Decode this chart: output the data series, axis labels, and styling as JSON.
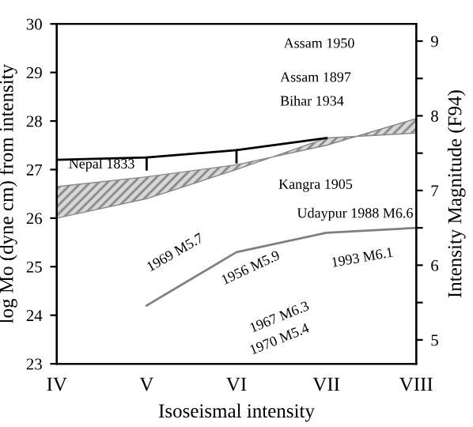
{
  "chart_data": {
    "type": "line",
    "xlabel": "Isoseismal intensity",
    "ylabel": "log Mo (dyne cm) from intensity",
    "y2label": "Intensity Magnitude (F94)",
    "categories": [
      "IV",
      "V",
      "VI",
      "VII",
      "VIII"
    ],
    "ylim": [
      23,
      30
    ],
    "yticks": [
      23,
      24,
      25,
      26,
      27,
      28,
      29,
      30
    ],
    "y2lim": [
      4.68,
      9.23
    ],
    "y2ticks": [
      5,
      {
        "value": 5.5,
        "label": null
      },
      6,
      {
        "value": 6.5,
        "label": null
      },
      7,
      {
        "value": 7.5,
        "label": null
      },
      8,
      {
        "value": 8.5,
        "label": null
      },
      9
    ],
    "grid": false,
    "legend": false,
    "series": [
      {
        "color": "#000000",
        "values": [
          27.2,
          27.25,
          27.4,
          27.65,
          null
        ]
      },
      {
        "color": "#888888",
        "type": "area",
        "values": [
          null,
          null,
          null,
          null,
          null
        ],
        "lower": [
          26.0,
          26.4,
          27.0,
          27.65,
          27.75
        ],
        "upper": [
          26.65,
          26.85,
          27.1,
          27.5,
          28.05
        ]
      },
      {
        "color": "#808080",
        "values": [
          null,
          24.2,
          25.3,
          25.7,
          25.8
        ]
      }
    ],
    "annotations": [
      "Assam 1950",
      "Assam 1897",
      "Bihar 1934",
      "Nepal 1833",
      "Kangra 1905",
      "Udaypur 1988 M6.6",
      "1969 M5.7",
      "1956 M5.9",
      "1993 M6.1",
      "1967 M6.3",
      "1970 M5.4"
    ]
  }
}
